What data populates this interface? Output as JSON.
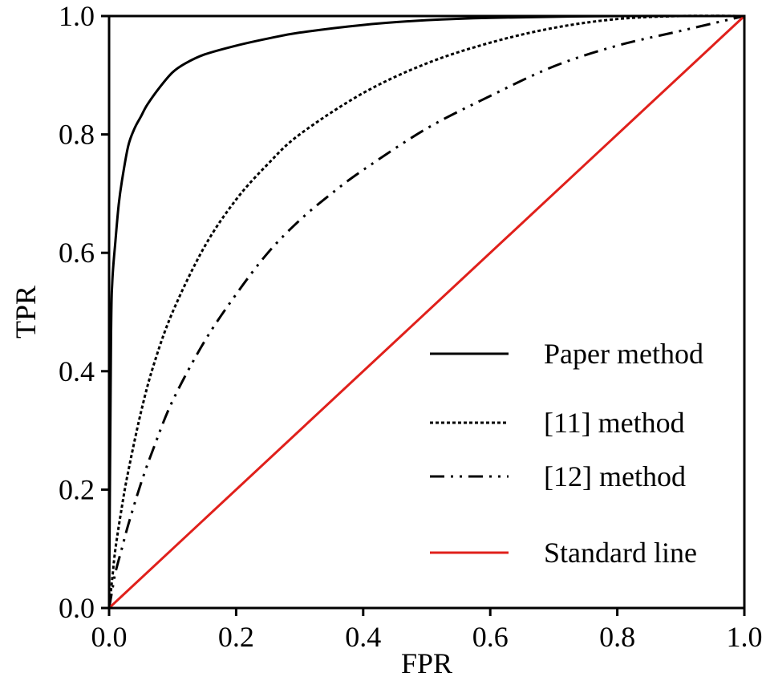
{
  "chart_data": {
    "type": "line",
    "title": "",
    "xlabel": "FPR",
    "ylabel": "TPR",
    "xlim": [
      0,
      1
    ],
    "ylim": [
      0,
      1
    ],
    "x_ticks": [
      "0.0",
      "0.2",
      "0.4",
      "0.6",
      "0.8",
      "1.0"
    ],
    "y_ticks": [
      "0.0",
      "0.2",
      "0.4",
      "0.6",
      "0.8",
      "1.0"
    ],
    "grid": false,
    "legend_position": "bottom-right",
    "series": [
      {
        "name": "Paper method",
        "color": "#000000",
        "line_style": "solid",
        "x": [
          0,
          0.003,
          0.005,
          0.01,
          0.015,
          0.02,
          0.03,
          0.04,
          0.05,
          0.06,
          0.08,
          0.1,
          0.12,
          0.15,
          0.2,
          0.25,
          0.3,
          0.4,
          0.5,
          0.6,
          0.8,
          1.0
        ],
        "y": [
          0,
          0.45,
          0.55,
          0.62,
          0.68,
          0.72,
          0.78,
          0.81,
          0.83,
          0.85,
          0.88,
          0.905,
          0.92,
          0.935,
          0.95,
          0.962,
          0.972,
          0.985,
          0.993,
          0.997,
          1.0,
          1.0
        ]
      },
      {
        "name": "[11] method",
        "color": "#000000",
        "line_style": "dotted",
        "x": [
          0,
          0.005,
          0.01,
          0.02,
          0.03,
          0.05,
          0.07,
          0.1,
          0.15,
          0.2,
          0.25,
          0.3,
          0.4,
          0.5,
          0.6,
          0.7,
          0.8,
          0.9,
          1.0
        ],
        "y": [
          0,
          0.05,
          0.1,
          0.17,
          0.23,
          0.33,
          0.41,
          0.5,
          0.61,
          0.69,
          0.75,
          0.8,
          0.87,
          0.92,
          0.955,
          0.98,
          0.995,
          1.0,
          1.0
        ]
      },
      {
        "name": "[12] method",
        "color": "#000000",
        "line_style": "dash-dot-dot",
        "x": [
          0,
          0.005,
          0.01,
          0.02,
          0.03,
          0.05,
          0.07,
          0.1,
          0.15,
          0.2,
          0.25,
          0.3,
          0.35,
          0.4,
          0.5,
          0.6,
          0.7,
          0.8,
          0.9,
          1.0
        ],
        "y": [
          0,
          0.03,
          0.06,
          0.1,
          0.14,
          0.21,
          0.27,
          0.35,
          0.45,
          0.53,
          0.6,
          0.655,
          0.7,
          0.74,
          0.81,
          0.865,
          0.915,
          0.95,
          0.975,
          1.0
        ]
      },
      {
        "name": "Standard line",
        "color": "#e0201b",
        "line_style": "solid",
        "x": [
          0,
          1
        ],
        "y": [
          0,
          1
        ]
      }
    ]
  }
}
